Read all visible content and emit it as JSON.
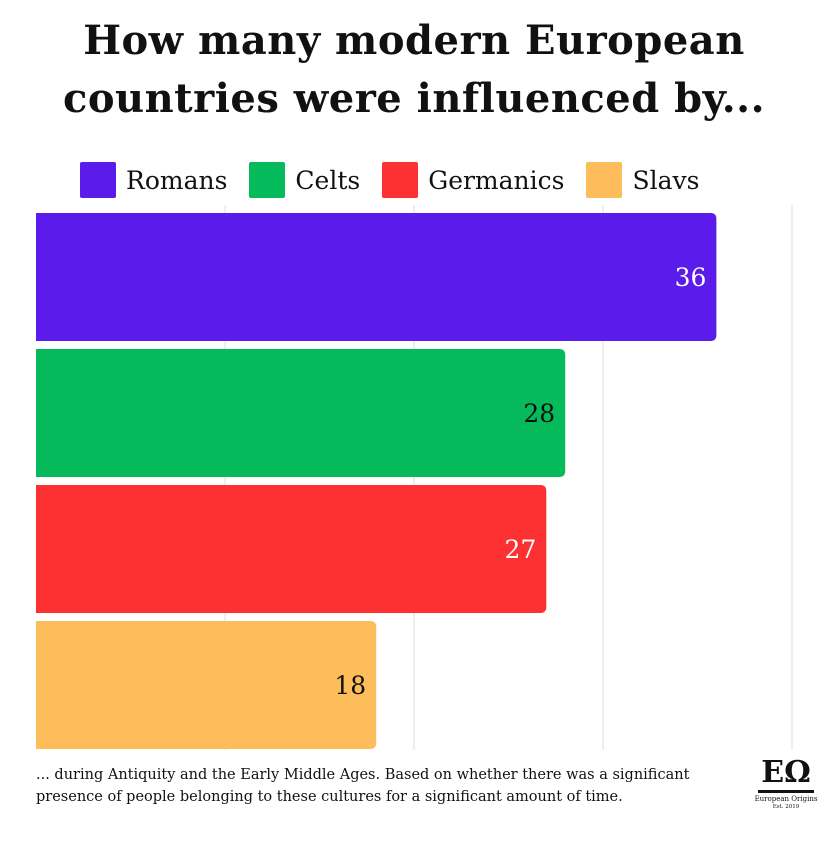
{
  "chart_data": {
    "type": "bar",
    "orientation": "horizontal",
    "title_lines": [
      "How many modern European",
      "countries were influenced by..."
    ],
    "categories": [
      "Romans",
      "Celts",
      "Germanics",
      "Slavs"
    ],
    "values": [
      36,
      28,
      27,
      18
    ],
    "colors": [
      "#5b1bea",
      "#05ba5b",
      "#fd3132",
      "#fdbd5a"
    ],
    "label_colors": [
      "#ffffff",
      "#111111",
      "#ffffff",
      "#111111"
    ],
    "xlim": [
      0,
      40
    ],
    "gridlines": [
      10,
      20,
      30,
      40
    ],
    "grid": true,
    "legend_position": "top",
    "xlabel": "",
    "ylabel": ""
  },
  "footnote": "... during Antiquity and the Early Middle Ages. Based on whether there was a significant presence of people belonging to these cultures for a significant amount of time.",
  "logo": {
    "mark": "EΩ",
    "name": "European Origins",
    "est": "Est. 2019"
  }
}
